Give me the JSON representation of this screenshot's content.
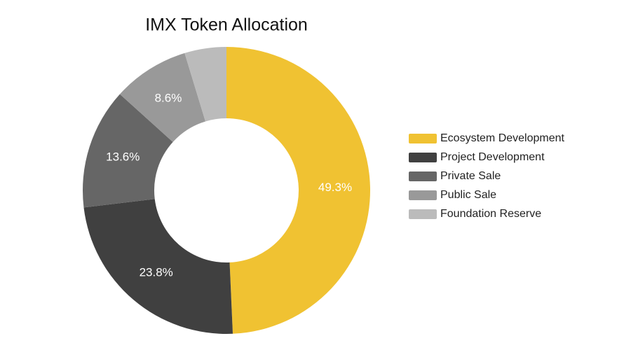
{
  "chart_data": {
    "type": "donut",
    "title": "IMX Token Allocation",
    "categories": [
      "Ecosystem Development",
      "Project Development",
      "Private Sale",
      "Public Sale",
      "Foundation Reserve"
    ],
    "values": [
      49.3,
      23.8,
      13.6,
      8.6,
      4.7
    ],
    "value_labels": [
      "49.3%",
      "23.8%",
      "13.6%",
      "8.6%",
      null
    ],
    "colors": [
      "#f0c232",
      "#404040",
      "#666666",
      "#999999",
      "#bbbbbb"
    ],
    "legend": "right"
  }
}
